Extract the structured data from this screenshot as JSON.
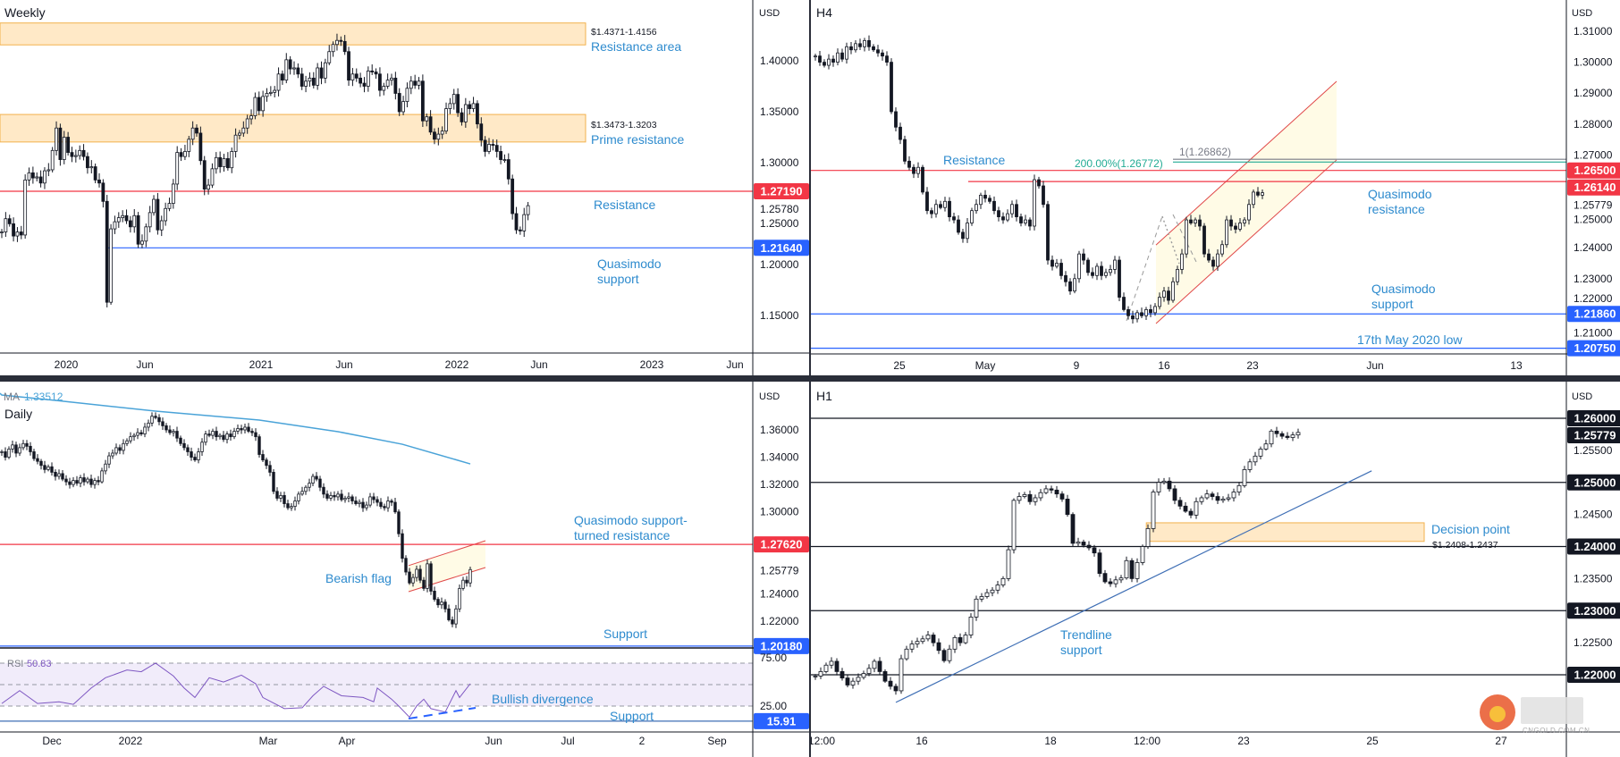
{
  "colors": {
    "resistance_red": "#f23645",
    "support_blue": "#2962ff",
    "annotation_blue": "#2e8bce",
    "zone_fill": "#ffe9c7",
    "zone_border": "#f2b14c",
    "fib_green": "#22ab94",
    "fib_gray": "#787b86",
    "ma_line": "#4aa3d8",
    "rsi_line": "#7e57c2",
    "bull_candle": "#ffffff",
    "bear_candle": "#131722"
  },
  "watermark": {
    "logo_text": "中金网",
    "domain": "CNGOLD.COM.CN",
    "tagline": "中文财经新媒体",
    "logo_icon": "cngold-swirl-logo"
  },
  "chart_data": [
    {
      "type": "candlestick",
      "timeframe": "Weekly",
      "currency": "USD",
      "x_ticks": [
        "2020",
        "Jun",
        "2021",
        "Jun",
        "2022",
        "Jun",
        "2023",
        "Jun"
      ],
      "y_ticks": [
        "1.40000",
        "1.35000",
        "1.30000",
        "1.25000",
        "1.20000",
        "1.15000"
      ],
      "last_price": 1.2578,
      "last_price_label": "1.25780",
      "closes": [
        1.232,
        1.245,
        1.24,
        1.228,
        1.232,
        1.229,
        1.283,
        1.29,
        1.285,
        1.286,
        1.28,
        1.292,
        1.293,
        1.312,
        1.334,
        1.303,
        1.325,
        1.31,
        1.306,
        1.307,
        1.312,
        1.306,
        1.295,
        1.296,
        1.283,
        1.28,
        1.262,
        1.163,
        1.235,
        1.242,
        1.246,
        1.248,
        1.243,
        1.237,
        1.248,
        1.22,
        1.223,
        1.237,
        1.251,
        1.264,
        1.234,
        1.243,
        1.255,
        1.26,
        1.279,
        1.31,
        1.306,
        1.311,
        1.323,
        1.334,
        1.329,
        1.302,
        1.274,
        1.278,
        1.294,
        1.305,
        1.296,
        1.304,
        1.295,
        1.311,
        1.327,
        1.329,
        1.334,
        1.343,
        1.346,
        1.364,
        1.351,
        1.365,
        1.368,
        1.369,
        1.371,
        1.387,
        1.381,
        1.401,
        1.392,
        1.393,
        1.387,
        1.375,
        1.38,
        1.383,
        1.376,
        1.393,
        1.383,
        1.398,
        1.409,
        1.416,
        1.42,
        1.419,
        1.409,
        1.381,
        1.387,
        1.383,
        1.378,
        1.375,
        1.39,
        1.389,
        1.387,
        1.371,
        1.375,
        1.381,
        1.383,
        1.368,
        1.35,
        1.36,
        1.373,
        1.38,
        1.376,
        1.38,
        1.341,
        1.345,
        1.33,
        1.323,
        1.328,
        1.331,
        1.353,
        1.358,
        1.367,
        1.349,
        1.34,
        1.357,
        1.353,
        1.358,
        1.338,
        1.322,
        1.311,
        1.318,
        1.317,
        1.311,
        1.303,
        1.303,
        1.284,
        1.25,
        1.234,
        1.233,
        1.249,
        1.2578
      ],
      "zones": [
        {
          "high": 1.4371,
          "low": 1.4156,
          "range_label": "$1.4371-1.4156",
          "label": "Resistance area"
        },
        {
          "high": 1.3473,
          "low": 1.3203,
          "range_label": "$1.3473-1.3203",
          "label": "Prime resistance"
        }
      ],
      "levels": [
        {
          "price": 1.2719,
          "badge": "1.27190",
          "color": "#f23645",
          "label": [
            "Resistance"
          ]
        },
        {
          "price": 1.2164,
          "badge": "1.21640",
          "color": "#2962ff",
          "label": [
            "Quasimodo",
            "support"
          ]
        }
      ]
    },
    {
      "type": "candlestick",
      "timeframe": "H4",
      "currency": "USD",
      "x_ticks": [
        "25",
        "May",
        "9",
        "16",
        "23",
        "Jun",
        "13"
      ],
      "y_ticks": [
        "1.31000",
        "1.30000",
        "1.29000",
        "1.28000",
        "1.27000",
        "1.25000",
        "1.24000",
        "1.23000",
        "1.22000",
        "1.21000"
      ],
      "last_price": 1.25779,
      "last_price_label": "1.25779",
      "closes": [
        1.302,
        1.3,
        1.299,
        1.301,
        1.3,
        1.303,
        1.301,
        1.305,
        1.304,
        1.306,
        1.305,
        1.307,
        1.305,
        1.304,
        1.303,
        1.302,
        1.3,
        1.284,
        1.279,
        1.275,
        1.268,
        1.266,
        1.264,
        1.266,
        1.258,
        1.252,
        1.251,
        1.254,
        1.253,
        1.255,
        1.25,
        1.249,
        1.245,
        1.243,
        1.248,
        1.252,
        1.254,
        1.257,
        1.256,
        1.255,
        1.252,
        1.25,
        1.249,
        1.251,
        1.254,
        1.25,
        1.248,
        1.249,
        1.247,
        1.262,
        1.26,
        1.254,
        1.236,
        1.234,
        1.235,
        1.231,
        1.229,
        1.226,
        1.23,
        1.238,
        1.236,
        1.232,
        1.231,
        1.234,
        1.231,
        1.232,
        1.233,
        1.236,
        1.224,
        1.22,
        1.218,
        1.217,
        1.219,
        1.218,
        1.22,
        1.219,
        1.221,
        1.224,
        1.226,
        1.223,
        1.229,
        1.233,
        1.238,
        1.249,
        1.248,
        1.249,
        1.247,
        1.238,
        1.236,
        1.234,
        1.238,
        1.241,
        1.249,
        1.247,
        1.246,
        1.248,
        1.249,
        1.254,
        1.258,
        1.257,
        1.25779
      ],
      "levels": [
        {
          "price": 1.265,
          "badge": "1.26500",
          "color": "#f23645"
        },
        {
          "price": 1.2614,
          "badge": "1.26140",
          "color": "#f23645"
        },
        {
          "price": 1.26772,
          "color": "#22ab94",
          "label": "200.00%(1.26772)"
        },
        {
          "price": 1.26862,
          "color": "#787b86",
          "label": "1(1.26862)"
        },
        {
          "price": 1.2186,
          "badge": "1.21860",
          "color": "#2962ff"
        },
        {
          "price": 1.2075,
          "badge": "1.20750",
          "color": "#2962ff"
        }
      ],
      "channel": {
        "upper": [
          [
            76.2,
            1.2409
          ],
          [
            116.6,
            1.2938
          ]
        ],
        "lower": [
          [
            76.2,
            1.2155
          ],
          [
            116.6,
            1.2684
          ]
        ]
      },
      "annotations": {
        "resistance": "Resistance",
        "qm_resistance": [
          "Quasimodo",
          "resistance"
        ],
        "qm_support": [
          "Quasimodo",
          "support"
        ],
        "may_low": "17th May 2020 low"
      }
    },
    {
      "type": "candlestick",
      "timeframe": "Daily",
      "currency": "USD",
      "x_ticks": [
        "Dec",
        "2022",
        "Mar",
        "Apr",
        "Jun",
        "Jul",
        "2",
        "Sep"
      ],
      "y_ticks": [
        "1.36000",
        "1.34000",
        "1.32000",
        "1.30000",
        "1.24000",
        "1.22000"
      ],
      "last_price": 1.25779,
      "last_price_label": "1.25779",
      "closes": [
        1.344,
        1.34,
        1.346,
        1.349,
        1.343,
        1.347,
        1.35,
        1.348,
        1.344,
        1.339,
        1.337,
        1.334,
        1.331,
        1.333,
        1.329,
        1.326,
        1.328,
        1.324,
        1.322,
        1.32,
        1.323,
        1.321,
        1.325,
        1.322,
        1.324,
        1.32,
        1.323,
        1.322,
        1.33,
        1.335,
        1.341,
        1.343,
        1.347,
        1.345,
        1.35,
        1.352,
        1.355,
        1.356,
        1.358,
        1.357,
        1.362,
        1.365,
        1.37,
        1.369,
        1.366,
        1.363,
        1.36,
        1.358,
        1.359,
        1.354,
        1.35,
        1.347,
        1.344,
        1.34,
        1.338,
        1.344,
        1.351,
        1.357,
        1.356,
        1.359,
        1.355,
        1.356,
        1.353,
        1.357,
        1.355,
        1.359,
        1.361,
        1.36,
        1.362,
        1.359,
        1.358,
        1.355,
        1.342,
        1.338,
        1.334,
        1.329,
        1.315,
        1.31,
        1.312,
        1.306,
        1.303,
        1.304,
        1.308,
        1.313,
        1.315,
        1.318,
        1.321,
        1.326,
        1.324,
        1.318,
        1.313,
        1.31,
        1.312,
        1.311,
        1.313,
        1.309,
        1.31,
        1.311,
        1.308,
        1.306,
        1.307,
        1.303,
        1.305,
        1.311,
        1.309,
        1.307,
        1.304,
        1.303,
        1.308,
        1.307,
        1.3,
        1.284,
        1.266,
        1.256,
        1.248,
        1.252,
        1.258,
        1.25,
        1.244,
        1.262,
        1.242,
        1.236,
        1.232,
        1.234,
        1.229,
        1.221,
        1.218,
        1.229,
        1.244,
        1.25,
        1.248,
        1.25779
      ],
      "ma": {
        "label": "MA",
        "value": "1.33512",
        "points": [
          [
            0,
            1.3855
          ],
          [
            15,
            1.3816
          ],
          [
            43,
            1.3737
          ],
          [
            72,
            1.3672
          ],
          [
            94,
            1.3587
          ],
          [
            112,
            1.3495
          ],
          [
            131,
            1.33512
          ]
        ]
      },
      "levels": [
        {
          "price": 1.2762,
          "badge": "1.27620",
          "color": "#f23645"
        },
        {
          "price": 1.2018,
          "badge": "1.20180",
          "color": "#2962ff"
        }
      ],
      "channel": {
        "upper": [
          [
            113.75,
            1.2607
          ],
          [
            135.25,
            1.2789
          ]
        ],
        "lower": [
          [
            113.75,
            1.2416
          ],
          [
            135.25,
            1.2593
          ]
        ]
      },
      "annotations": {
        "qm_turned": [
          "Quasimodo support-",
          "turned resistance"
        ],
        "bearish_flag": "Bearish flag",
        "support": "Support"
      },
      "rsi": {
        "label": "RSI",
        "value": "50.83",
        "upper_band": 70,
        "middle": 50,
        "lower_band": 30,
        "axis_labels": [
          {
            "value": 75,
            "text": "75.00"
          },
          {
            "value": 25,
            "text": "25.00"
          }
        ],
        "points": [
          [
            0,
            32.4
          ],
          [
            5,
            44.4
          ],
          [
            10,
            32.4
          ],
          [
            16,
            34
          ],
          [
            20,
            31.6
          ],
          [
            25,
            46.8
          ],
          [
            29,
            56.4
          ],
          [
            35,
            63.6
          ],
          [
            39,
            62
          ],
          [
            43,
            70
          ],
          [
            48,
            58
          ],
          [
            51,
            46.8
          ],
          [
            54,
            38
          ],
          [
            58,
            56.4
          ],
          [
            62,
            52.4
          ],
          [
            67,
            58.8
          ],
          [
            71,
            50.8
          ],
          [
            73,
            38
          ],
          [
            79,
            27.6
          ],
          [
            84,
            28.4
          ],
          [
            87,
            39.6
          ],
          [
            90,
            48.4
          ],
          [
            95,
            39.6
          ],
          [
            101,
            38
          ],
          [
            104,
            34
          ],
          [
            105,
            46.8
          ],
          [
            109,
            36.4
          ],
          [
            111,
            30
          ],
          [
            114,
            19.6
          ],
          [
            116,
            30
          ],
          [
            118,
            36.4
          ],
          [
            120,
            27.6
          ],
          [
            124,
            24.4
          ],
          [
            127,
            44.4
          ],
          [
            128,
            38
          ],
          [
            131,
            50.83
          ]
        ],
        "support": {
          "value": 15.91,
          "badge": "15.91",
          "label": "Support"
        },
        "divergence": {
          "from": [
            113.75,
            18.3
          ],
          "to": [
            132.5,
            28.3
          ],
          "label": "Bullish divergence"
        }
      }
    },
    {
      "type": "candlestick",
      "timeframe": "H1",
      "currency": "USD",
      "x_ticks": [
        "12:00",
        "16",
        "18",
        "12:00",
        "23",
        "25",
        "27"
      ],
      "y_ticks": [
        "1.25500",
        "1.24500",
        "1.23500",
        "1.22500"
      ],
      "last_price": 1.25779,
      "last_price_label": "1.25779",
      "closes": [
        1.2198,
        1.2205,
        1.2215,
        1.2221,
        1.2205,
        1.2195,
        1.2184,
        1.219,
        1.2196,
        1.2202,
        1.221,
        1.2221,
        1.2205,
        1.219,
        1.2182,
        1.2175,
        1.2225,
        1.224,
        1.2248,
        1.2252,
        1.2256,
        1.2262,
        1.225,
        1.2238,
        1.2222,
        1.224,
        1.2258,
        1.225,
        1.2262,
        1.229,
        1.2318,
        1.2322,
        1.2328,
        1.2332,
        1.234,
        1.235,
        1.2395,
        1.2472,
        1.2478,
        1.2481,
        1.247,
        1.2476,
        1.2484,
        1.249,
        1.2488,
        1.2482,
        1.2474,
        1.245,
        1.2405,
        1.2407,
        1.2402,
        1.2398,
        1.239,
        1.2358,
        1.2345,
        1.2342,
        1.2348,
        1.2351,
        1.2378,
        1.235,
        1.2375,
        1.24,
        1.2428,
        1.2485,
        1.25,
        1.2502,
        1.249,
        1.2472,
        1.2463,
        1.2455,
        1.2449,
        1.247,
        1.2476,
        1.2482,
        1.2478,
        1.2472,
        1.2474,
        1.2476,
        1.2485,
        1.2495,
        1.252,
        1.2532,
        1.2541,
        1.2552,
        1.256,
        1.258,
        1.2576,
        1.2572,
        1.257,
        1.2574,
        1.25779
      ],
      "levels": [
        {
          "price": 1.26,
          "badge": "1.26000",
          "color": "#131722"
        },
        {
          "price": 1.25,
          "badge": "1.25000",
          "color": "#131722"
        },
        {
          "price": 1.24,
          "badge": "1.24000",
          "color": "#131722"
        },
        {
          "price": 1.23,
          "badge": "1.23000",
          "color": "#131722"
        },
        {
          "price": 1.22,
          "badge": "1.22000",
          "color": "#131722"
        }
      ],
      "zone": {
        "high": 1.2437,
        "low": 1.2408,
        "from": 61.7,
        "to": 113.5,
        "label": "Decision point",
        "range_label": "$1.2408-1.2437"
      },
      "trendline": {
        "from": [
          15,
          1.2157
        ],
        "to": [
          103.7,
          1.2518
        ],
        "label": [
          "Trendline",
          "support"
        ]
      }
    }
  ]
}
